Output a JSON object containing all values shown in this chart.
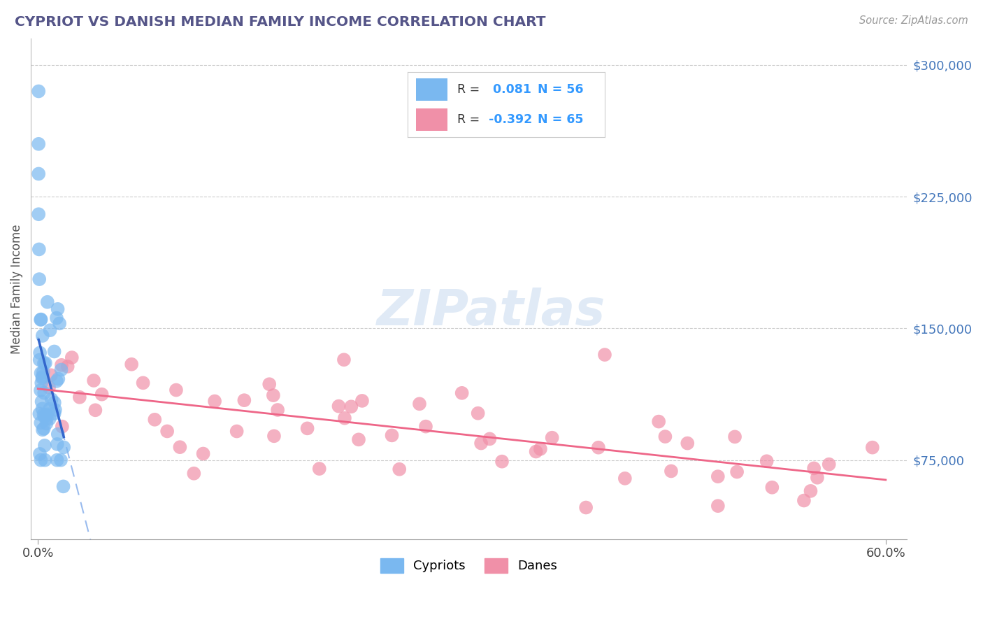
{
  "title": "CYPRIOT VS DANISH MEDIAN FAMILY INCOME CORRELATION CHART",
  "source": "Source: ZipAtlas.com",
  "ylabel": "Median Family Income",
  "yticks": [
    75000,
    150000,
    225000,
    300000
  ],
  "ytick_labels": [
    "$75,000",
    "$150,000",
    "$225,000",
    "$300,000"
  ],
  "xlim": [
    -0.005,
    0.615
  ],
  "ylim": [
    30000,
    315000
  ],
  "cypriot_color": "#7ab8f0",
  "dane_color": "#f090a8",
  "cypriot_line_color": "#3366cc",
  "cypriot_dash_color": "#99bbee",
  "dane_line_color": "#ee6688",
  "cypriot_R": 0.081,
  "cypriot_N": 56,
  "dane_R": -0.392,
  "dane_N": 65,
  "background_color": "#ffffff",
  "grid_color": "#cccccc",
  "title_color": "#555588",
  "axis_label_color": "#4477bb",
  "legend_R_color": "#3399ff",
  "legend_text_color": "#333333"
}
